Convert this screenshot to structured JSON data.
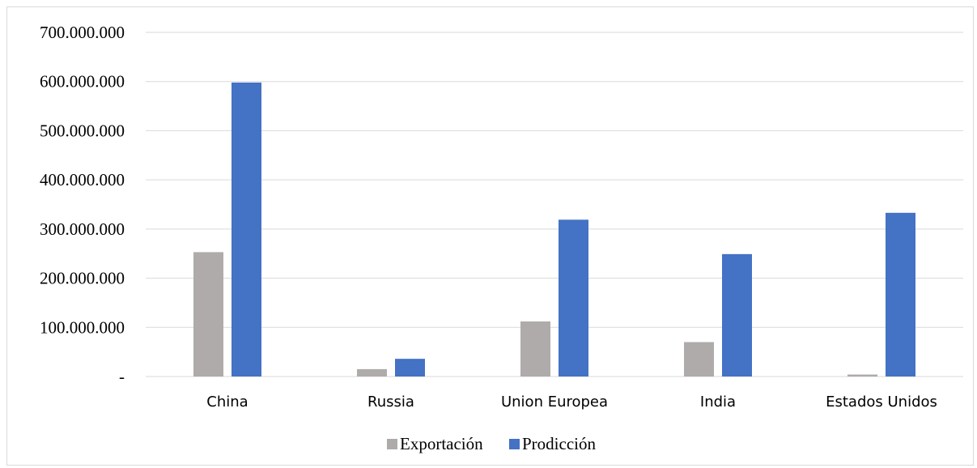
{
  "chart_data": {
    "type": "bar",
    "categories": [
      "China",
      "Russia",
      "Union Europea",
      "India",
      "Estados Unidos"
    ],
    "series": [
      {
        "name": "Exportación",
        "color": "#afabab",
        "values": [
          253000000,
          15000000,
          112000000,
          70000000,
          4000000
        ]
      },
      {
        "name": "Prodicción",
        "color": "#4472c4",
        "values": [
          598000000,
          36000000,
          319000000,
          249000000,
          333000000
        ]
      }
    ],
    "y_ticks": [
      {
        "value": 0,
        "label": "-"
      },
      {
        "value": 100000000,
        "label": "100.000.000"
      },
      {
        "value": 200000000,
        "label": "200.000.000"
      },
      {
        "value": 300000000,
        "label": "300.000.000"
      },
      {
        "value": 400000000,
        "label": "400.000.000"
      },
      {
        "value": 500000000,
        "label": "500.000.000"
      },
      {
        "value": 600000000,
        "label": "600.000.000"
      },
      {
        "value": 700000000,
        "label": "700.000.000"
      }
    ],
    "ylim": [
      0,
      700000000
    ],
    "title": "",
    "xlabel": "",
    "ylabel": "",
    "grid": true,
    "legend_position": "bottom",
    "gridline_color": "#d9d9d9"
  }
}
